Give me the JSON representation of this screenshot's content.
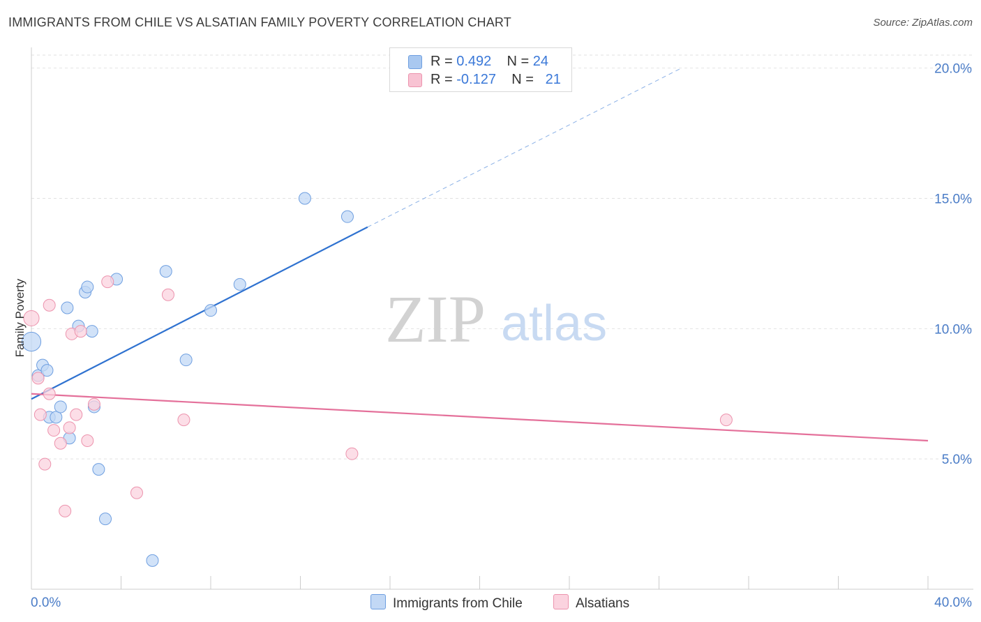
{
  "header": {
    "title": "IMMIGRANTS FROM CHILE VS ALSATIAN FAMILY POVERTY CORRELATION CHART",
    "source": "Source: ZipAtlas.com"
  },
  "watermark": {
    "zip": "ZIP",
    "atlas": "atlas"
  },
  "legend": {
    "rows": [
      {
        "r_label": "R = ",
        "r_value": "0.492",
        "n_label": "N = ",
        "n_value": "24",
        "color": "#a9c8f0",
        "border": "#6f9fe0"
      },
      {
        "r_label": "R = ",
        "r_value": "-0.127",
        "n_label": "N = ",
        "n_value": "21",
        "color": "#f8c3d3",
        "border": "#ec93ad"
      }
    ]
  },
  "bottom_legend": {
    "items": [
      {
        "label": "Immigrants from Chile",
        "color": "#c2d8f5",
        "border": "#6f9fe0"
      },
      {
        "label": "Alsatians",
        "color": "#fbd3df",
        "border": "#ec93ad"
      }
    ]
  },
  "chart_data": {
    "type": "scatter",
    "title": "IMMIGRANTS FROM CHILE VS ALSATIAN FAMILY POVERTY CORRELATION CHART",
    "xlabel": "",
    "ylabel": "Family Poverty",
    "xlim": [
      0,
      40
    ],
    "ylim": [
      0,
      20.5
    ],
    "x_tick_labels": [
      "0.0%",
      "40.0%"
    ],
    "y_ticks": [
      5,
      10,
      15,
      20
    ],
    "y_tick_labels": [
      "5.0%",
      "10.0%",
      "15.0%",
      "20.0%"
    ],
    "grid": true,
    "legend_position": "top-center",
    "series": [
      {
        "name": "Immigrants from Chile",
        "color": "#6f9fe0",
        "fill": "#c2d8f5",
        "r": 0.492,
        "n": 24,
        "points": [
          [
            0.0,
            9.5,
            1.6
          ],
          [
            0.3,
            8.2,
            1
          ],
          [
            0.5,
            8.6,
            1
          ],
          [
            0.7,
            8.4,
            1
          ],
          [
            0.8,
            6.6,
            1
          ],
          [
            1.1,
            6.6,
            1
          ],
          [
            1.3,
            7.0,
            1
          ],
          [
            1.6,
            10.8,
            1
          ],
          [
            1.7,
            5.8,
            1
          ],
          [
            2.1,
            10.1,
            1
          ],
          [
            2.4,
            11.4,
            1
          ],
          [
            2.5,
            11.6,
            1
          ],
          [
            2.7,
            9.9,
            1
          ],
          [
            2.8,
            7.0,
            1
          ],
          [
            3.0,
            4.6,
            1
          ],
          [
            3.3,
            2.7,
            1
          ],
          [
            3.8,
            11.9,
            1
          ],
          [
            5.4,
            1.1,
            1
          ],
          [
            6.0,
            12.2,
            1
          ],
          [
            6.9,
            8.8,
            1
          ],
          [
            8.0,
            10.7,
            1
          ],
          [
            9.3,
            11.7,
            1
          ],
          [
            12.2,
            15.0,
            1
          ],
          [
            14.1,
            14.3,
            1
          ]
        ],
        "trend": {
          "x0": 0.0,
          "y0": 7.3,
          "x_solid_end": 15.0,
          "y_solid_end": 13.9,
          "x1": 29.0,
          "y1": 20.0
        }
      },
      {
        "name": "Alsatians",
        "color": "#ec93ad",
        "fill": "#fbd3df",
        "r": -0.127,
        "n": 21,
        "points": [
          [
            0.0,
            10.4,
            1.3
          ],
          [
            0.3,
            8.1,
            1
          ],
          [
            0.4,
            6.7,
            1
          ],
          [
            0.6,
            4.8,
            1
          ],
          [
            0.8,
            7.5,
            1
          ],
          [
            0.8,
            10.9,
            1
          ],
          [
            1.0,
            6.1,
            1
          ],
          [
            1.3,
            5.6,
            1
          ],
          [
            1.5,
            3.0,
            1
          ],
          [
            1.7,
            6.2,
            1
          ],
          [
            1.8,
            9.8,
            1
          ],
          [
            2.0,
            6.7,
            1
          ],
          [
            2.2,
            9.9,
            1
          ],
          [
            2.5,
            5.7,
            1
          ],
          [
            2.8,
            7.1,
            1
          ],
          [
            3.4,
            11.8,
            1
          ],
          [
            4.7,
            3.7,
            1
          ],
          [
            6.1,
            11.3,
            1
          ],
          [
            6.8,
            6.5,
            1
          ],
          [
            14.3,
            5.2,
            1
          ],
          [
            31.0,
            6.5,
            1
          ]
        ],
        "trend": {
          "x0": 0.0,
          "y0": 7.5,
          "x1": 40.0,
          "y1": 5.7
        }
      }
    ]
  }
}
